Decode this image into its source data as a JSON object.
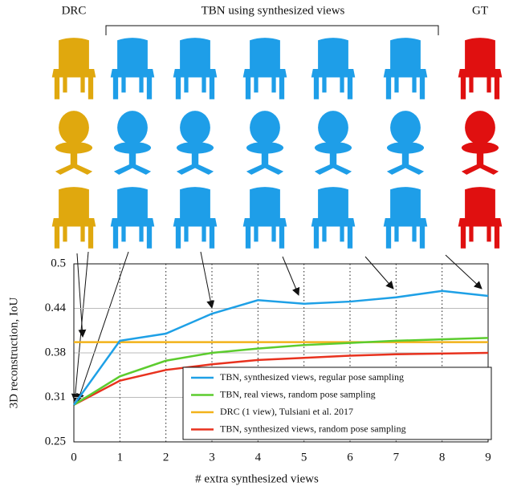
{
  "chart_data": {
    "type": "line",
    "header_labels": [
      "DRC",
      "TBN using synthesized views",
      "GT"
    ],
    "xlabel": "# extra synthesized views",
    "ylabel": "3D reconstruction, IoU",
    "x": [
      0,
      1,
      2,
      3,
      4,
      5,
      6,
      7,
      8,
      9
    ],
    "xlim": [
      0,
      9
    ],
    "xticks": [
      0,
      1,
      2,
      3,
      4,
      5,
      6,
      7,
      8,
      9
    ],
    "ylim": [
      0.25,
      0.5
    ],
    "yticks": [
      0.25,
      {
        "value": 0.3125,
        "label": "0.31"
      },
      {
        "value": 0.375,
        "label": "0.38"
      },
      {
        "value": 0.4375,
        "label": "0.44"
      },
      0.5
    ],
    "grid": true,
    "legend": "lower right",
    "series": [
      {
        "name": "TBN, synthesized views, regular pose sampling",
        "color": "#1ea0e6",
        "values": [
          0.302,
          0.392,
          0.402,
          0.43,
          0.449,
          0.444,
          0.447,
          0.453,
          0.462,
          0.455
        ]
      },
      {
        "name": "TBN, real views, random pose sampling",
        "color": "#5ccc2e",
        "values": [
          0.302,
          0.342,
          0.364,
          0.375,
          0.381,
          0.386,
          0.389,
          0.392,
          0.394,
          0.396
        ]
      },
      {
        "name": "DRC (1 view), Tulsiani et al. 2017",
        "color": "#f2b21a",
        "values": [
          0.39,
          0.39,
          0.39,
          0.39,
          0.39,
          0.39,
          0.39,
          0.39,
          0.39,
          0.39
        ]
      },
      {
        "name": "TBN, synthesized views, random pose sampling",
        "color": "#e8321e",
        "values": [
          0.302,
          0.336,
          0.351,
          0.359,
          0.365,
          0.368,
          0.371,
          0.373,
          0.374,
          0.375
        ]
      }
    ]
  }
}
